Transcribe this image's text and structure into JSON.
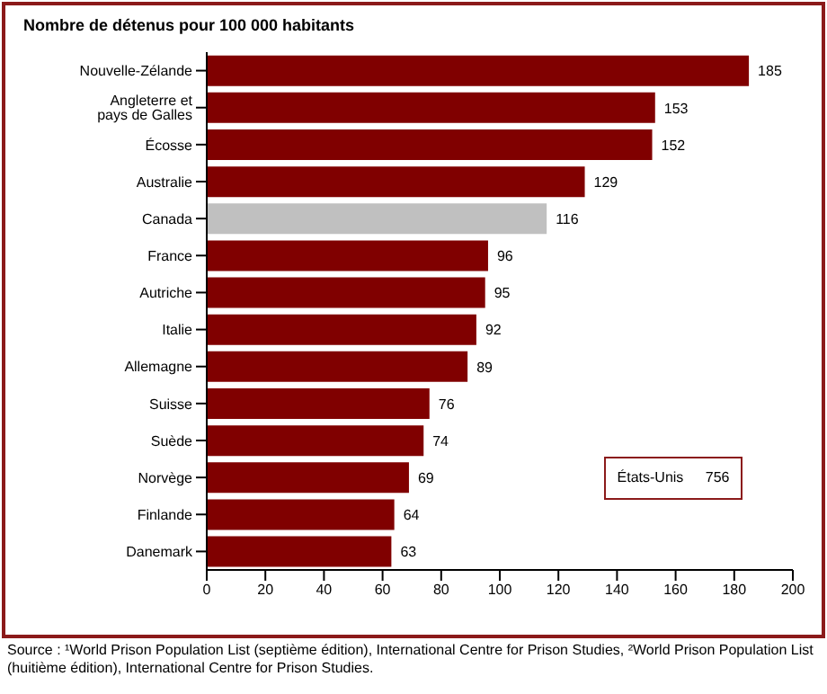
{
  "chart_data": {
    "type": "bar",
    "orientation": "horizontal",
    "title": "Nombre de détenus pour 100 000 habitants",
    "categories": [
      "Nouvelle-Zélande",
      "Angleterre et pays de Galles",
      "Écosse",
      "Australie",
      "Canada",
      "France",
      "Autriche",
      "Italie",
      "Allemagne",
      "Suisse",
      "Suède",
      "Norvège",
      "Finlande",
      "Danemark"
    ],
    "values": [
      185,
      153,
      152,
      129,
      116,
      96,
      95,
      92,
      89,
      76,
      74,
      69,
      64,
      63
    ],
    "colors": [
      "#800000",
      "#800000",
      "#800000",
      "#800000",
      "#c0c0c0",
      "#800000",
      "#800000",
      "#800000",
      "#800000",
      "#800000",
      "#800000",
      "#800000",
      "#800000",
      "#800000"
    ],
    "xlim": [
      0,
      200
    ],
    "xticks": [
      0,
      20,
      40,
      60,
      80,
      100,
      120,
      140,
      160,
      180,
      200
    ],
    "grid": false,
    "legend": false,
    "data_labels": true,
    "annotations": [
      "États-Unis 756",
      "Source : ¹World Prison Population List (septième édition), International Centre for Prison Studies, ²World Prison Population List (huitième édition), International Centre for Prison Studies."
    ]
  }
}
